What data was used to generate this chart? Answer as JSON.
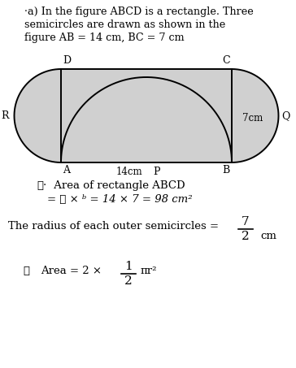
{
  "title_line1": "·a) In the figure ABCD is a rectangle. Three",
  "title_line2": "semicircles are drawn as shown in the",
  "title_line3": "figure AB = 14 cm, BC = 7 cm",
  "label_D": "D",
  "label_C": "C",
  "label_A": "A",
  "label_B": "B",
  "label_R": "R",
  "label_Q": "Q",
  "label_P": "P",
  "label_14cm": "14cm",
  "label_7cm": "7cm",
  "shade_color": "#d0d0d0",
  "line_color": "#000000",
  "text1_therefore": "∴·",
  "text1_rest": " Area of rectangle ABCD",
  "text2": "= ℓ × ᵇ = 14 × 7 = 98 cm²",
  "text3": "The radius of each outer semicircles =",
  "frac_num": "7",
  "frac_den": "2",
  "frac_unit": "cm",
  "text4_therefore": "∴",
  "text4_mid": "Area = 2 ×",
  "frac2_num": "1",
  "frac2_den": "2",
  "text4_right": "πr²",
  "bg_color": "#ffffff",
  "fig_width": 3.64,
  "fig_height": 4.53,
  "dpi": 100
}
